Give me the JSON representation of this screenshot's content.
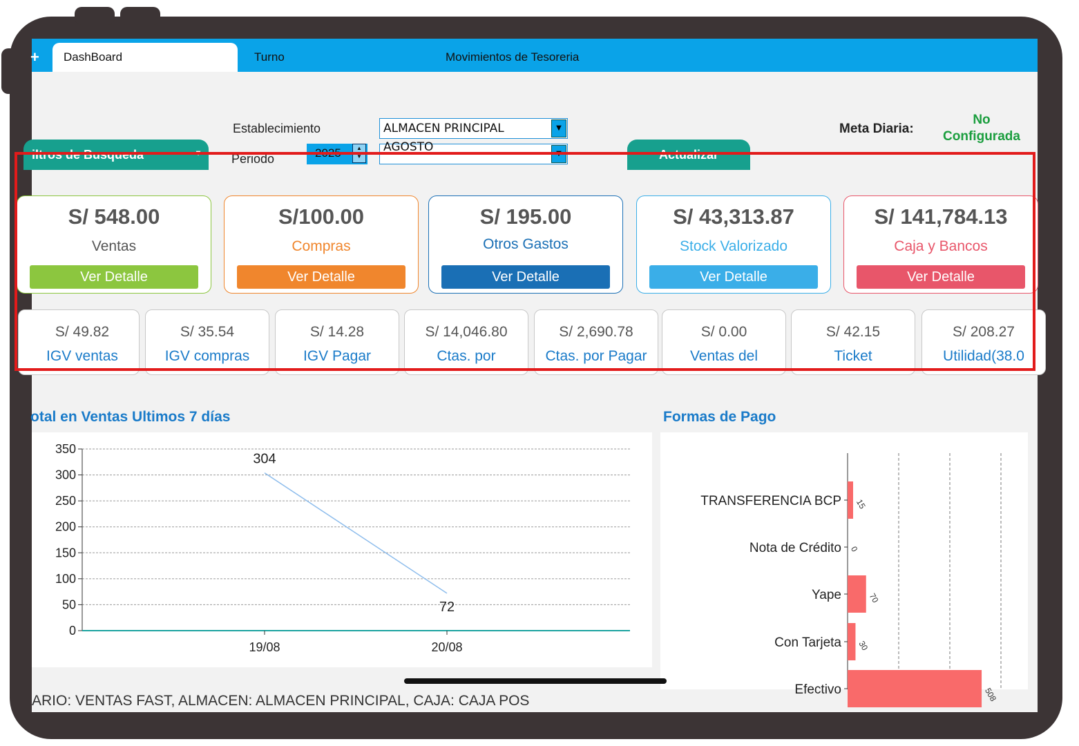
{
  "tabs": [
    {
      "label": "DashBoard",
      "active": true
    },
    {
      "label": "Turno",
      "active": false
    },
    {
      "label": "Movimientos de Tesoreria",
      "active": false
    }
  ],
  "filters": {
    "search_button_label": "iltros de Busqueda",
    "establecimiento_label": "Establecimiento",
    "establecimiento_value": "ALMACEN PRINCIPAL",
    "periodo_label": "Periodo",
    "year_value": "2025",
    "month_value": "AGOSTO",
    "update_button_label": "Actualizar",
    "meta_label": "Meta Diaria:",
    "meta_value_line1": "No",
    "meta_value_line2": "Configurada"
  },
  "cards": [
    {
      "amount": "S/ 548.00",
      "title": "Ventas",
      "button": "Ver Detalle",
      "color": "#8cc63f",
      "title_color": "#555555"
    },
    {
      "amount": "S/100.00",
      "title": "Compras",
      "button": "Ver Detalle",
      "color": "#f0862d",
      "title_color": "#f0862d"
    },
    {
      "amount": "S/ 195.00",
      "title": "Otros Gastos",
      "button": "Ver Detalle",
      "color": "#1a6fb5",
      "title_color": "#1a6fb5"
    },
    {
      "amount": "S/ 43,313.87",
      "title": "Stock Valorizado",
      "button": "Ver Detalle",
      "color": "#3aaee8",
      "title_color": "#3aaee8"
    },
    {
      "amount": "S/ 141,784.13",
      "title": "Caja y Bancos",
      "button": "Ver Detalle",
      "color": "#e8566a",
      "title_color": "#e8566a"
    }
  ],
  "metrics": [
    {
      "amount": "S/ 49.82",
      "label": "IGV ventas"
    },
    {
      "amount": "S/ 35.54",
      "label": "IGV compras"
    },
    {
      "amount": "S/ 14.28",
      "label": "IGV Pagar"
    },
    {
      "amount": "S/ 14,046.80",
      "label": "Ctas. por"
    },
    {
      "amount": "S/ 2,690.78",
      "label": "Ctas. por Pagar"
    },
    {
      "amount": "S/ 0.00",
      "label": "Ventas del"
    },
    {
      "amount": "S/ 42.15",
      "label": "Ticket"
    },
    {
      "amount": "S/ 208.27",
      "label": "Utilidad(38.0"
    }
  ],
  "sales_chart_title": "otal en Ventas Ultimos 7 días",
  "payment_chart_title": "Formas de Pago",
  "status_text": "ARIO: VENTAS FAST, ALMACEN: ALMACEN PRINCIPAL, CAJA: CAJA POS",
  "colors": {
    "accent": "#0aa3e8",
    "highlight_box": "#e21b1b",
    "bar": "#f96a6a",
    "line": "#8cbcec"
  },
  "chart_data": [
    {
      "type": "line",
      "title": "otal en Ventas Ultimos 7 días",
      "categories": [
        "19/08",
        "20/08"
      ],
      "series": [
        {
          "values": [
            304,
            72
          ]
        }
      ],
      "ylim": [
        0,
        350
      ],
      "yticks": [
        0,
        50,
        100,
        150,
        200,
        250,
        300,
        350
      ],
      "grid": true
    },
    {
      "type": "bar",
      "orientation": "horizontal",
      "title": "Formas de Pago",
      "categories": [
        "TRANSFERENCIA BCP",
        "Nota de Crédito",
        "Yape",
        "Con Tarjeta",
        "Efectivo"
      ],
      "values": [
        15,
        0,
        70,
        30,
        508
      ],
      "grid": true
    }
  ]
}
